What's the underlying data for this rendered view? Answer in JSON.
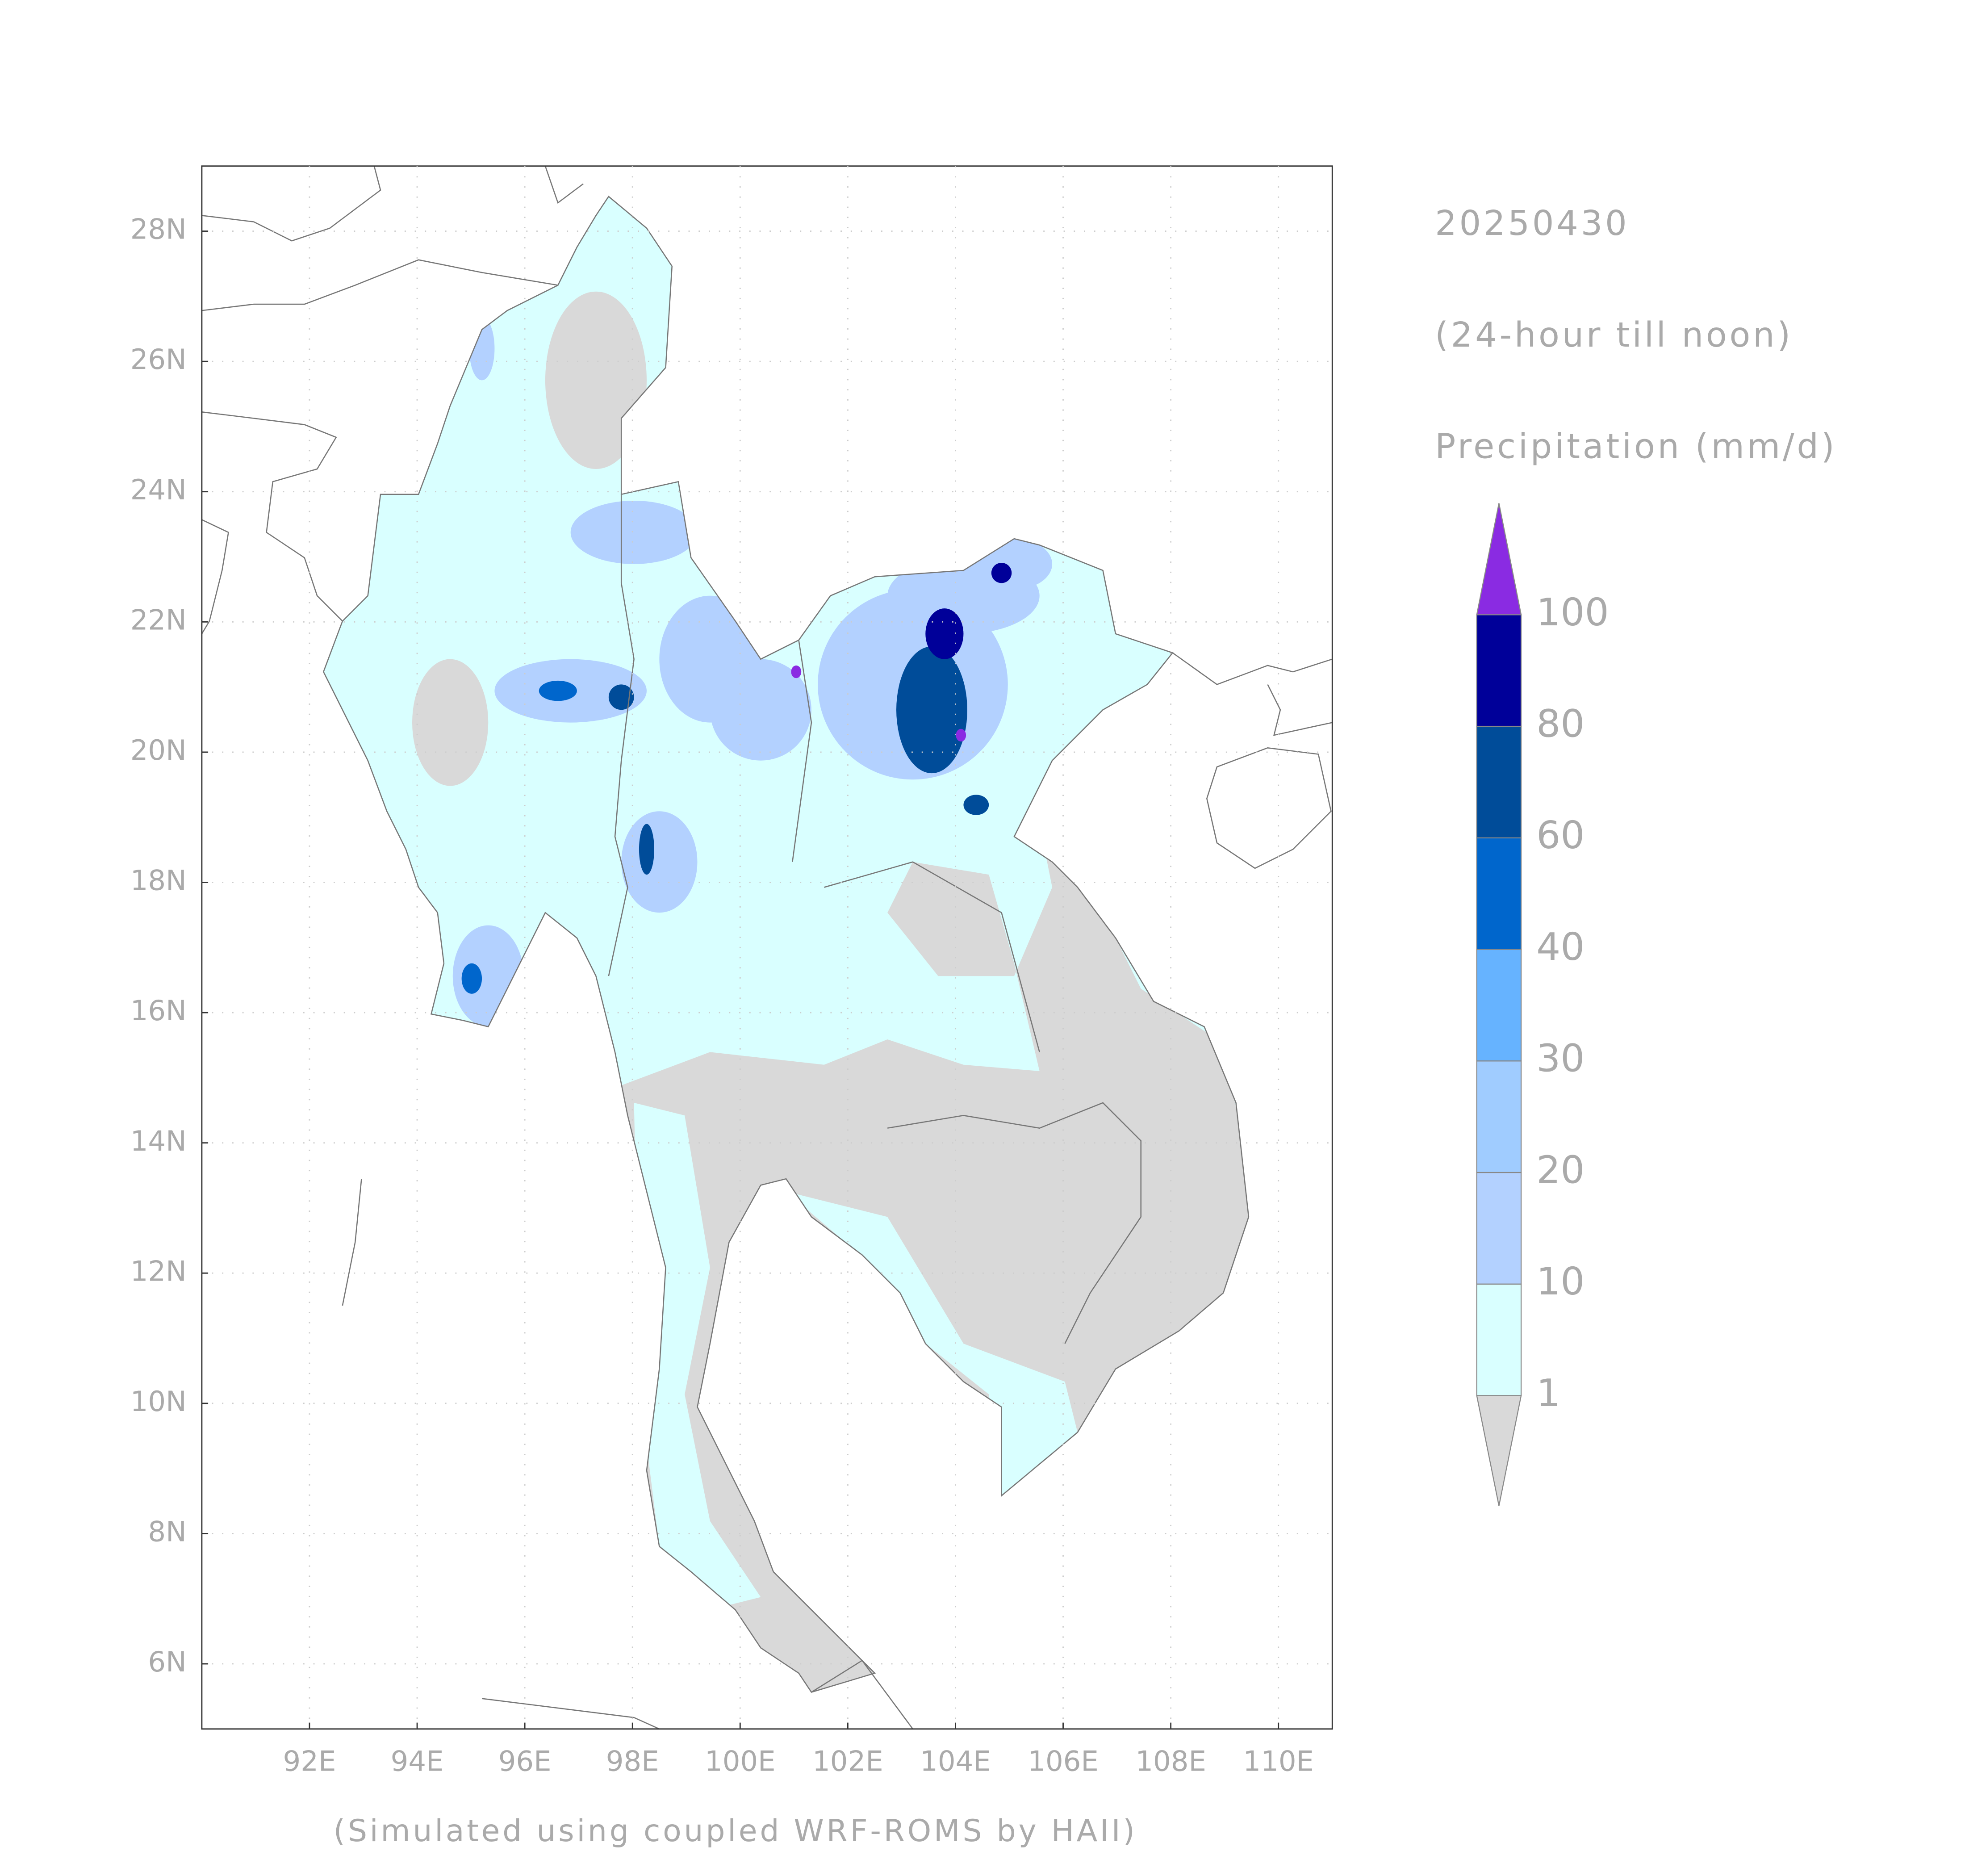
{
  "chart_data": {
    "type": "map",
    "title": "20250430",
    "subtitle": "(24-hour till noon)",
    "colorbar_label": "Precipitation (mm/d)",
    "caption": "(Simulated using coupled WRF-ROMS by HAII)",
    "xlim": [
      90,
      111
    ],
    "ylim": [
      5,
      29
    ],
    "xticks": [
      {
        "value": 92,
        "label": "92E"
      },
      {
        "value": 94,
        "label": "94E"
      },
      {
        "value": 96,
        "label": "96E"
      },
      {
        "value": 98,
        "label": "98E"
      },
      {
        "value": 100,
        "label": "100E"
      },
      {
        "value": 102,
        "label": "102E"
      },
      {
        "value": 104,
        "label": "104E"
      },
      {
        "value": 106,
        "label": "106E"
      },
      {
        "value": 108,
        "label": "108E"
      },
      {
        "value": 110,
        "label": "110E"
      }
    ],
    "yticks": [
      {
        "value": 6,
        "label": "6N"
      },
      {
        "value": 8,
        "label": "8N"
      },
      {
        "value": 10,
        "label": "10N"
      },
      {
        "value": 12,
        "label": "12N"
      },
      {
        "value": 14,
        "label": "14N"
      },
      {
        "value": 16,
        "label": "16N"
      },
      {
        "value": 18,
        "label": "18N"
      },
      {
        "value": 20,
        "label": "20N"
      },
      {
        "value": 22,
        "label": "22N"
      },
      {
        "value": 24,
        "label": "24N"
      },
      {
        "value": 26,
        "label": "26N"
      },
      {
        "value": 28,
        "label": "28N"
      }
    ],
    "grid": true,
    "colorbar": {
      "levels": [
        1,
        10,
        20,
        30,
        40,
        60,
        80,
        100
      ],
      "colors": [
        "#d9d9d9",
        "#d9ffff",
        "#b3d1ff",
        "#a0ccff",
        "#66b3ff",
        "#0066cc",
        "#004c99",
        "#000099",
        "#8a2be2"
      ]
    }
  }
}
